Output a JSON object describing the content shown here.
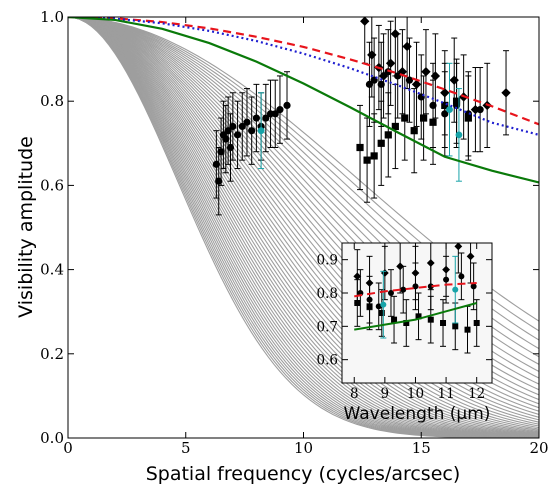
{
  "chart_data": [
    {
      "type": "line",
      "panel": "main",
      "title": "",
      "xlabel": "Spatial frequency (cycles/arcsec)",
      "ylabel": "Visibility amplitude",
      "xlim": [
        0,
        20
      ],
      "ylim": [
        0,
        1
      ],
      "xticks": [
        0,
        5,
        10,
        15,
        20
      ],
      "yticks": [
        0.0,
        0.2,
        0.4,
        0.6,
        0.8,
        1.0
      ],
      "xtick_labels": [
        "0",
        "5",
        "10",
        "15",
        "20"
      ],
      "ytick_labels": [
        "0.0",
        "0.2",
        "0.4",
        "0.6",
        "0.8",
        "1.0"
      ],
      "grid": false,
      "legend": "none",
      "colors": {
        "model_fan": "#9e9e9e",
        "red_dashed": "#e8141c",
        "blue_dotted": "#1f1fd0",
        "green_solid": "#0a7a0a",
        "data_black": "#000000",
        "data_cyan": "#17a3a8"
      },
      "model_fan_gaussian_fwhm_mas": [
        30,
        31,
        32,
        33,
        34,
        35,
        36,
        37,
        38,
        39,
        40,
        41,
        42,
        43,
        44,
        45,
        46,
        47,
        48,
        49,
        50,
        51,
        52,
        53,
        54,
        55,
        56,
        57,
        58,
        59,
        60,
        61,
        62,
        63,
        64,
        65,
        66,
        67,
        68,
        69,
        70,
        71,
        72,
        73,
        74,
        75,
        76,
        77,
        78,
        79,
        80
      ],
      "series": [
        {
          "style": "dashed",
          "color": "#e8141c",
          "x": [
            0,
            2,
            4,
            6,
            8,
            10,
            12,
            14,
            16,
            18,
            20
          ],
          "y": [
            1.0,
            0.997,
            0.988,
            0.973,
            0.953,
            0.929,
            0.899,
            0.866,
            0.828,
            0.788,
            0.745
          ]
        },
        {
          "style": "dotted",
          "color": "#1f1fd0",
          "x": [
            0,
            2,
            4,
            6,
            8,
            10,
            12,
            14,
            16,
            18,
            20
          ],
          "y": [
            1.0,
            0.996,
            0.985,
            0.967,
            0.943,
            0.913,
            0.878,
            0.838,
            0.795,
            0.749,
            0.72
          ]
        },
        {
          "style": "solid",
          "color": "#0a7a0a",
          "x": [
            0,
            2,
            4,
            6,
            8,
            10,
            12,
            14,
            16,
            18,
            20
          ],
          "y": [
            1.0,
            0.993,
            0.972,
            0.938,
            0.894,
            0.842,
            0.785,
            0.726,
            0.668,
            0.635,
            0.607
          ]
        }
      ],
      "points_circles": [
        {
          "x": 6.3,
          "y": 0.65,
          "err": 0.08
        },
        {
          "x": 6.4,
          "y": 0.61,
          "err": 0.08
        },
        {
          "x": 6.5,
          "y": 0.68,
          "err": 0.08
        },
        {
          "x": 6.6,
          "y": 0.72,
          "err": 0.08
        },
        {
          "x": 6.7,
          "y": 0.71,
          "err": 0.08
        },
        {
          "x": 6.8,
          "y": 0.73,
          "err": 0.08
        },
        {
          "x": 6.9,
          "y": 0.69,
          "err": 0.08
        },
        {
          "x": 7.0,
          "y": 0.74,
          "err": 0.08
        },
        {
          "x": 7.2,
          "y": 0.72,
          "err": 0.08
        },
        {
          "x": 7.4,
          "y": 0.74,
          "err": 0.08
        },
        {
          "x": 7.6,
          "y": 0.75,
          "err": 0.08
        },
        {
          "x": 7.8,
          "y": 0.73,
          "err": 0.08
        },
        {
          "x": 8.0,
          "y": 0.76,
          "err": 0.08
        },
        {
          "x": 8.2,
          "y": 0.74,
          "err": 0.08
        },
        {
          "x": 8.4,
          "y": 0.76,
          "err": 0.08
        },
        {
          "x": 8.6,
          "y": 0.77,
          "err": 0.08
        },
        {
          "x": 8.8,
          "y": 0.77,
          "err": 0.08
        },
        {
          "x": 9.0,
          "y": 0.78,
          "err": 0.08
        },
        {
          "x": 9.3,
          "y": 0.79,
          "err": 0.08
        },
        {
          "x": 12.8,
          "y": 0.84,
          "err": 0.1
        },
        {
          "x": 13.0,
          "y": 0.85,
          "err": 0.1
        },
        {
          "x": 13.3,
          "y": 0.84,
          "err": 0.1
        },
        {
          "x": 13.6,
          "y": 0.87,
          "err": 0.1
        },
        {
          "x": 14.0,
          "y": 0.86,
          "err": 0.1
        },
        {
          "x": 14.5,
          "y": 0.85,
          "err": 0.1
        },
        {
          "x": 15.0,
          "y": 0.81,
          "err": 0.1
        },
        {
          "x": 15.5,
          "y": 0.79,
          "err": 0.1
        },
        {
          "x": 16.0,
          "y": 0.77,
          "err": 0.1
        },
        {
          "x": 16.5,
          "y": 0.79,
          "err": 0.1
        },
        {
          "x": 17.0,
          "y": 0.77,
          "err": 0.1
        },
        {
          "x": 17.5,
          "y": 0.78,
          "err": 0.1
        }
      ],
      "points_diamonds": [
        {
          "x": 12.6,
          "y": 0.99,
          "err": 0.1
        },
        {
          "x": 12.9,
          "y": 0.91,
          "err": 0.1
        },
        {
          "x": 13.2,
          "y": 0.88,
          "err": 0.1
        },
        {
          "x": 13.4,
          "y": 0.86,
          "err": 0.1
        },
        {
          "x": 13.7,
          "y": 0.89,
          "err": 0.1
        },
        {
          "x": 13.9,
          "y": 0.96,
          "err": 0.1
        },
        {
          "x": 14.2,
          "y": 0.87,
          "err": 0.1
        },
        {
          "x": 14.4,
          "y": 0.93,
          "err": 0.1
        },
        {
          "x": 14.8,
          "y": 0.84,
          "err": 0.1
        },
        {
          "x": 15.2,
          "y": 0.87,
          "err": 0.1
        },
        {
          "x": 15.6,
          "y": 0.86,
          "err": 0.1
        },
        {
          "x": 16.0,
          "y": 0.82,
          "err": 0.1
        },
        {
          "x": 16.4,
          "y": 0.85,
          "err": 0.1
        },
        {
          "x": 16.8,
          "y": 0.81,
          "err": 0.1
        },
        {
          "x": 17.3,
          "y": 0.78,
          "err": 0.1
        },
        {
          "x": 17.8,
          "y": 0.79,
          "err": 0.1
        },
        {
          "x": 18.6,
          "y": 0.82,
          "err": 0.1
        }
      ],
      "points_squares": [
        {
          "x": 12.4,
          "y": 0.69,
          "err": 0.1
        },
        {
          "x": 12.7,
          "y": 0.66,
          "err": 0.1
        },
        {
          "x": 13.0,
          "y": 0.67,
          "err": 0.1
        },
        {
          "x": 13.3,
          "y": 0.7,
          "err": 0.1
        },
        {
          "x": 13.6,
          "y": 0.72,
          "err": 0.1
        },
        {
          "x": 13.9,
          "y": 0.74,
          "err": 0.1
        },
        {
          "x": 14.3,
          "y": 0.76,
          "err": 0.1
        },
        {
          "x": 14.7,
          "y": 0.73,
          "err": 0.1
        },
        {
          "x": 15.1,
          "y": 0.76,
          "err": 0.1
        },
        {
          "x": 15.5,
          "y": 0.75,
          "err": 0.1
        },
        {
          "x": 16.0,
          "y": 0.79,
          "err": 0.1
        },
        {
          "x": 16.5,
          "y": 0.8,
          "err": 0.1
        },
        {
          "x": 17.0,
          "y": 0.76,
          "err": 0.1
        }
      ],
      "points_cyan": [
        {
          "x": 8.2,
          "y": 0.73,
          "err": 0.09
        },
        {
          "x": 16.2,
          "y": 0.78,
          "err": 0.11
        },
        {
          "x": 16.6,
          "y": 0.72,
          "err": 0.11
        }
      ]
    },
    {
      "type": "line",
      "panel": "inset",
      "title": "",
      "xlabel": "Wavelength (μm)",
      "ylabel": "",
      "xlim": [
        7.6,
        12.5
      ],
      "ylim": [
        0.53,
        0.95
      ],
      "xticks": [
        8,
        9,
        10,
        11,
        12
      ],
      "yticks": [
        0.6,
        0.7,
        0.8,
        0.9
      ],
      "xtick_labels": [
        "8",
        "9",
        "10",
        "11",
        "12"
      ],
      "ytick_labels": [
        "0.6",
        "0.7",
        "0.8",
        "0.9"
      ],
      "series": [
        {
          "style": "dashed",
          "color": "#e8141c",
          "x": [
            8.0,
            9.0,
            10.0,
            11.0,
            12.0
          ],
          "y": [
            0.79,
            0.805,
            0.815,
            0.825,
            0.83
          ]
        },
        {
          "style": "solid",
          "color": "#0a7a0a",
          "x": [
            8.0,
            9.0,
            10.0,
            11.0,
            12.0
          ],
          "y": [
            0.69,
            0.705,
            0.72,
            0.745,
            0.77
          ]
        }
      ],
      "points_circles": [
        {
          "x": 8.2,
          "y": 0.8,
          "err": 0.07
        },
        {
          "x": 8.5,
          "y": 0.78,
          "err": 0.07
        },
        {
          "x": 8.8,
          "y": 0.76,
          "err": 0.07
        },
        {
          "x": 9.2,
          "y": 0.8,
          "err": 0.07
        },
        {
          "x": 9.6,
          "y": 0.81,
          "err": 0.07
        },
        {
          "x": 10.0,
          "y": 0.82,
          "err": 0.07
        },
        {
          "x": 10.5,
          "y": 0.82,
          "err": 0.07
        },
        {
          "x": 11.0,
          "y": 0.84,
          "err": 0.07
        },
        {
          "x": 11.5,
          "y": 0.85,
          "err": 0.07
        },
        {
          "x": 11.9,
          "y": 0.82,
          "err": 0.07
        }
      ],
      "points_diamonds": [
        {
          "x": 8.1,
          "y": 0.85,
          "err": 0.08
        },
        {
          "x": 8.5,
          "y": 0.83,
          "err": 0.08
        },
        {
          "x": 9.0,
          "y": 0.86,
          "err": 0.08
        },
        {
          "x": 9.5,
          "y": 0.88,
          "err": 0.08
        },
        {
          "x": 10.0,
          "y": 0.86,
          "err": 0.08
        },
        {
          "x": 10.5,
          "y": 0.89,
          "err": 0.08
        },
        {
          "x": 11.0,
          "y": 0.87,
          "err": 0.08
        },
        {
          "x": 11.4,
          "y": 0.94,
          "err": 0.08
        },
        {
          "x": 11.8,
          "y": 0.91,
          "err": 0.08
        }
      ],
      "points_squares": [
        {
          "x": 8.1,
          "y": 0.77,
          "err": 0.07
        },
        {
          "x": 8.5,
          "y": 0.76,
          "err": 0.07
        },
        {
          "x": 8.9,
          "y": 0.74,
          "err": 0.07
        },
        {
          "x": 9.3,
          "y": 0.72,
          "err": 0.07
        },
        {
          "x": 9.7,
          "y": 0.71,
          "err": 0.07
        },
        {
          "x": 10.1,
          "y": 0.73,
          "err": 0.07
        },
        {
          "x": 10.5,
          "y": 0.72,
          "err": 0.07
        },
        {
          "x": 10.9,
          "y": 0.71,
          "err": 0.07
        },
        {
          "x": 11.3,
          "y": 0.7,
          "err": 0.07
        },
        {
          "x": 11.7,
          "y": 0.69,
          "err": 0.07
        },
        {
          "x": 12.0,
          "y": 0.71,
          "err": 0.07
        }
      ],
      "points_cyan": [
        {
          "x": 8.95,
          "y": 0.765,
          "err": 0.1
        },
        {
          "x": 11.3,
          "y": 0.81,
          "err": 0.1
        }
      ]
    }
  ]
}
